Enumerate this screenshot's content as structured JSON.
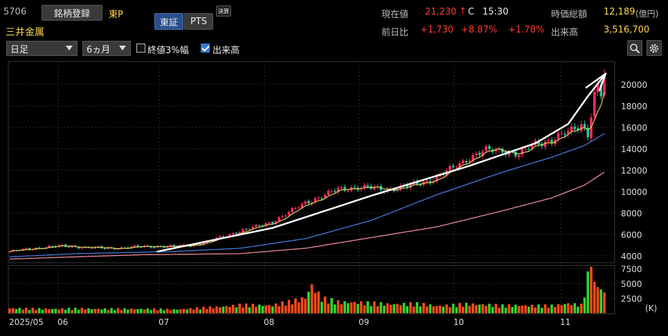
{
  "header": {
    "code": "5706",
    "register_label": "銘柄登録",
    "market": "東P",
    "name": "三井金属",
    "tabs": [
      "東証",
      "PTS"
    ],
    "kessan_label": "決算"
  },
  "quote": {
    "current_label": "現在値",
    "current_value": "21,230",
    "arrow": "↑",
    "flag": "C",
    "time": "15:30",
    "mcap_label": "時価総額",
    "mcap_value": "12,189",
    "mcap_unit": "(億円)",
    "prev_label": "前日比",
    "change": "+1,730",
    "change_pct": "+8.87%",
    "change_pct2": "+1.78%",
    "volume_label": "出来高",
    "volume_value": "3,516,700"
  },
  "controls": {
    "period": "日足",
    "range": "6ヵ月",
    "option1": "終値3%幅",
    "option1_checked": false,
    "option2": "出来高",
    "option2_checked": true,
    "zoom_icon": "zoom-icon",
    "settings_icon": "gear-icon"
  },
  "colors": {
    "up": "#ff2a5a",
    "down": "#19c8a0",
    "ma_short": "#e0d060",
    "ma_mid": "#4a78e0",
    "ma_long": "#f08a9a",
    "vol_up": "#ff4a1a",
    "vol_down": "#2fd82f",
    "trend": "#ffffff",
    "grid": "#2a2a2a"
  },
  "chart_data": [
    {
      "type": "candlestick",
      "title": "",
      "ylim": [
        3600,
        21600
      ],
      "y_ticks": [
        "20000",
        "18000",
        "16000",
        "14000",
        "12000",
        "10000",
        "8000",
        "6000",
        "4000"
      ],
      "x_ticks": [
        "2025/05",
        "06",
        "07",
        "08",
        "09",
        "10",
        "11"
      ],
      "price_anchors": [
        [
          0,
          4400
        ],
        [
          5,
          4600
        ],
        [
          10,
          4800
        ],
        [
          15,
          4900
        ],
        [
          20,
          4850
        ],
        [
          25,
          4750
        ],
        [
          30,
          4700
        ],
        [
          35,
          4750
        ],
        [
          40,
          4850
        ],
        [
          45,
          4900
        ],
        [
          50,
          4850
        ],
        [
          55,
          5000
        ],
        [
          60,
          5300
        ],
        [
          65,
          5800
        ],
        [
          70,
          6300
        ],
        [
          75,
          6700
        ],
        [
          80,
          7200
        ],
        [
          85,
          8000
        ],
        [
          90,
          9000
        ],
        [
          95,
          9500
        ],
        [
          100,
          10200
        ],
        [
          105,
          10400
        ],
        [
          110,
          10300
        ],
        [
          115,
          10200
        ],
        [
          120,
          10400
        ],
        [
          125,
          10800
        ],
        [
          130,
          11300
        ],
        [
          135,
          12200
        ],
        [
          140,
          13200
        ],
        [
          145,
          13800
        ],
        [
          150,
          13900
        ],
        [
          155,
          13400
        ],
        [
          160,
          14500
        ],
        [
          165,
          14800
        ],
        [
          170,
          15500
        ],
        [
          174,
          16300
        ],
        [
          176,
          15400
        ],
        [
          178,
          19000
        ],
        [
          179,
          19800
        ],
        [
          180,
          19000
        ],
        [
          181,
          20800
        ]
      ],
      "ma25_anchors": [
        [
          0,
          3900
        ],
        [
          20,
          4200
        ],
        [
          50,
          4400
        ],
        [
          70,
          4700
        ],
        [
          90,
          5600
        ],
        [
          110,
          7300
        ],
        [
          130,
          9700
        ],
        [
          150,
          11800
        ],
        [
          165,
          13200
        ],
        [
          175,
          14300
        ],
        [
          181,
          15400
        ]
      ],
      "ma75_anchors": [
        [
          0,
          3700
        ],
        [
          40,
          4100
        ],
        [
          70,
          4200
        ],
        [
          90,
          4700
        ],
        [
          110,
          5700
        ],
        [
          130,
          6700
        ],
        [
          150,
          8200
        ],
        [
          165,
          9400
        ],
        [
          175,
          10600
        ],
        [
          181,
          11800
        ]
      ],
      "trend_annotation": [
        [
          45,
          4400
        ],
        [
          80,
          6600
        ],
        [
          110,
          9600
        ],
        [
          140,
          12400
        ],
        [
          160,
          14500
        ],
        [
          170,
          16300
        ],
        [
          176,
          18900
        ],
        [
          181,
          21000
        ]
      ]
    },
    {
      "type": "bar",
      "title": "",
      "ylabel": "(K)",
      "ylim": [
        0,
        8000
      ],
      "y_ticks": [
        "7500",
        "5000",
        "2500"
      ],
      "volume_anchors": [
        [
          0,
          800
        ],
        [
          10,
          700
        ],
        [
          20,
          750
        ],
        [
          30,
          700
        ],
        [
          40,
          700
        ],
        [
          50,
          600
        ],
        [
          60,
          900
        ],
        [
          65,
          1100
        ],
        [
          70,
          1300
        ],
        [
          80,
          1300
        ],
        [
          85,
          1800
        ],
        [
          88,
          2200
        ],
        [
          90,
          2600
        ],
        [
          92,
          4600
        ],
        [
          95,
          2400
        ],
        [
          100,
          1800
        ],
        [
          105,
          1800
        ],
        [
          110,
          1600
        ],
        [
          115,
          1500
        ],
        [
          120,
          1500
        ],
        [
          125,
          1500
        ],
        [
          130,
          1200
        ],
        [
          135,
          1300
        ],
        [
          140,
          1500
        ],
        [
          145,
          1400
        ],
        [
          150,
          1200
        ],
        [
          155,
          1300
        ],
        [
          160,
          1200
        ],
        [
          165,
          1200
        ],
        [
          170,
          1600
        ],
        [
          174,
          1300
        ],
        [
          177,
          7800
        ],
        [
          178,
          5300
        ],
        [
          179,
          4400
        ],
        [
          180,
          4000
        ],
        [
          181,
          3500
        ]
      ]
    }
  ]
}
